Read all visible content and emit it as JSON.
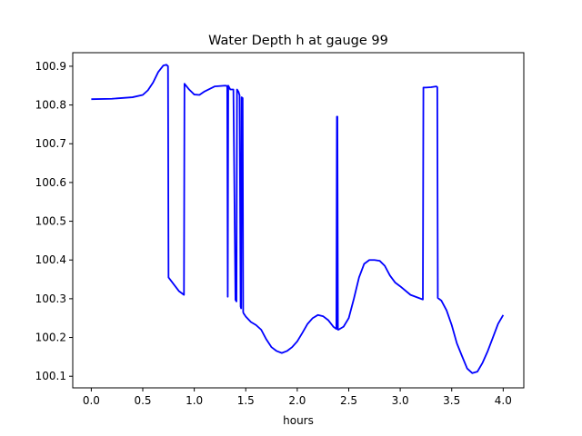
{
  "chart_data": {
    "type": "line",
    "title": "Water Depth h at gauge 99",
    "xlabel": "hours",
    "ylabel": "",
    "xlim": [
      -0.18,
      4.2
    ],
    "ylim": [
      100.07,
      100.935
    ],
    "xticks": [
      0.0,
      0.5,
      1.0,
      1.5,
      2.0,
      2.5,
      3.0,
      3.5,
      4.0
    ],
    "xtick_labels": [
      "0.0",
      "0.5",
      "1.0",
      "1.5",
      "2.0",
      "2.5",
      "3.0",
      "3.5",
      "4.0"
    ],
    "yticks": [
      100.1,
      100.2,
      100.3,
      100.4,
      100.5,
      100.6,
      100.7,
      100.8,
      100.9
    ],
    "ytick_labels": [
      "100.1",
      "100.2",
      "100.3",
      "100.4",
      "100.5",
      "100.6",
      "100.7",
      "100.8",
      "100.9"
    ],
    "grid": false,
    "series": [
      {
        "color": "#0000ff",
        "x": [
          0.0,
          0.2,
          0.4,
          0.5,
          0.55,
          0.6,
          0.65,
          0.7,
          0.73,
          0.745,
          0.75,
          0.85,
          0.9,
          0.905,
          0.95,
          1.0,
          1.05,
          1.1,
          1.2,
          1.3,
          1.32,
          1.325,
          1.33,
          1.33,
          1.35,
          1.38,
          1.4,
          1.41,
          1.415,
          1.42,
          1.43,
          1.44,
          1.45,
          1.455,
          1.46,
          1.47,
          1.475,
          1.48,
          1.49,
          1.5,
          1.55,
          1.6,
          1.65,
          1.7,
          1.75,
          1.8,
          1.85,
          1.9,
          1.95,
          2.0,
          2.05,
          2.1,
          2.15,
          2.2,
          2.25,
          2.3,
          2.35,
          2.38,
          2.385,
          2.39,
          2.395,
          2.4,
          2.45,
          2.5,
          2.55,
          2.6,
          2.65,
          2.7,
          2.75,
          2.8,
          2.85,
          2.9,
          2.95,
          3.0,
          3.1,
          3.2,
          3.22,
          3.225,
          3.25,
          3.3,
          3.35,
          3.36,
          3.365,
          3.4,
          3.45,
          3.5,
          3.55,
          3.6,
          3.65,
          3.7,
          3.75,
          3.8,
          3.85,
          3.9,
          3.95,
          4.0
        ],
        "y": [
          100.815,
          100.816,
          100.82,
          100.826,
          100.838,
          100.858,
          100.885,
          100.902,
          100.904,
          100.9,
          100.355,
          100.32,
          100.31,
          100.855,
          100.84,
          100.827,
          100.826,
          100.835,
          100.848,
          100.85,
          100.849,
          100.305,
          100.85,
          100.85,
          100.84,
          100.84,
          100.297,
          100.293,
          100.84,
          100.838,
          100.834,
          100.825,
          100.28,
          100.275,
          100.82,
          100.818,
          100.265,
          100.262,
          100.258,
          100.254,
          100.24,
          100.232,
          100.22,
          100.195,
          100.175,
          100.165,
          100.16,
          100.165,
          100.175,
          100.19,
          100.212,
          100.235,
          100.25,
          100.258,
          100.255,
          100.245,
          100.228,
          100.222,
          100.77,
          100.77,
          100.22,
          100.22,
          100.228,
          100.25,
          100.3,
          100.355,
          100.39,
          100.4,
          100.4,
          100.398,
          100.385,
          100.36,
          100.342,
          100.332,
          100.31,
          100.3,
          100.298,
          100.845,
          100.845,
          100.846,
          100.848,
          100.846,
          100.302,
          100.295,
          100.27,
          100.232,
          100.185,
          100.152,
          100.12,
          100.108,
          100.112,
          100.135,
          100.165,
          100.2,
          100.235,
          100.258
        ]
      }
    ]
  }
}
